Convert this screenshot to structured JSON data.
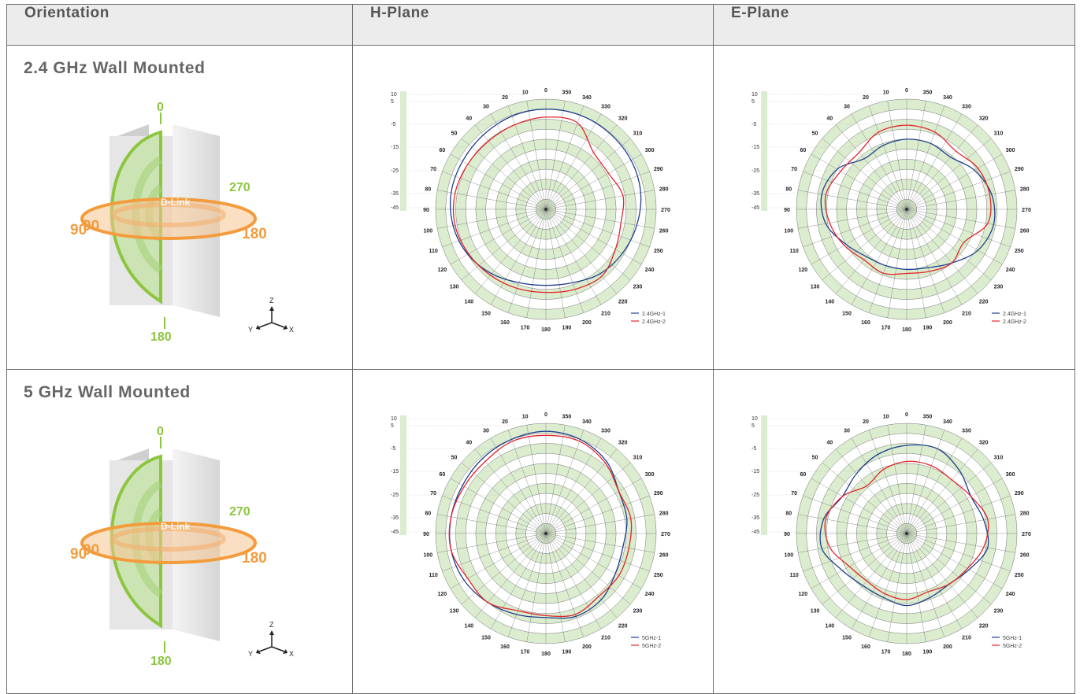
{
  "table": {
    "headers": [
      "Orientation",
      "H-Plane",
      "E-Plane"
    ],
    "rows": [
      {
        "orientation": "2.4 GHz Wall Mounted"
      },
      {
        "orientation": "5 GHz Wall Mounted"
      }
    ]
  },
  "illustration": {
    "brand": "D-Link",
    "label_top": "0",
    "label_bottom": "180",
    "label_right_upper": "270",
    "label_left_a": "90",
    "label_left_b": "90",
    "label_right": "180",
    "axis_z": "Z",
    "axis_y": "Y",
    "axis_x": "X",
    "green": "#8cc63f",
    "orange": "#f39c3d"
  },
  "chart_data": [
    {
      "type": "polar-line",
      "plane": "H-Plane",
      "band": "2.4 GHz",
      "rlim": [
        -45,
        10
      ],
      "rticks": [
        "10",
        "5",
        "-5",
        "-15",
        "-25",
        "-35",
        "-45"
      ],
      "angle_labels": [
        "0",
        "10",
        "20",
        "30",
        "40",
        "50",
        "60",
        "70",
        "80",
        "90",
        "100",
        "110",
        "120",
        "130",
        "140",
        "150",
        "160",
        "170",
        "180",
        "190",
        "200",
        "210",
        "220",
        "230",
        "240",
        "250",
        "260",
        "270",
        "280",
        "290",
        "300",
        "310",
        "320",
        "330",
        "340",
        "350"
      ],
      "series": [
        {
          "name": "2.4GHz-1",
          "color": "#1f3f8f",
          "angles": [
            0,
            20,
            40,
            60,
            80,
            100,
            120,
            140,
            160,
            180,
            200,
            220,
            240,
            260,
            280,
            300,
            320,
            340
          ],
          "values": [
            5,
            4.5,
            3.5,
            3,
            3,
            2,
            0,
            -3,
            -6,
            -7,
            -6,
            -3,
            -1,
            1,
            3,
            4,
            4.5,
            5
          ]
        },
        {
          "name": "2.4GHz-2",
          "color": "#e2262b",
          "angles": [
            0,
            20,
            40,
            60,
            80,
            100,
            120,
            140,
            160,
            180,
            200,
            220,
            240,
            260,
            280,
            300,
            320,
            340
          ],
          "values": [
            1,
            0,
            -0.5,
            0,
            1,
            1,
            -0.5,
            -2,
            -3,
            -3.5,
            -2.5,
            -1.5,
            -5,
            -7,
            -6,
            -9,
            -8,
            1
          ]
        }
      ]
    },
    {
      "type": "polar-line",
      "plane": "E-Plane",
      "band": "2.4 GHz",
      "rlim": [
        -45,
        10
      ],
      "rticks": [
        "10",
        "5",
        "-5",
        "-15",
        "-25",
        "-35",
        "-45"
      ],
      "angle_labels": [
        "0",
        "10",
        "20",
        "30",
        "40",
        "50",
        "60",
        "70",
        "80",
        "90",
        "100",
        "110",
        "120",
        "130",
        "140",
        "150",
        "160",
        "170",
        "180",
        "190",
        "200",
        "210",
        "220",
        "230",
        "240",
        "250",
        "260",
        "270",
        "280",
        "290",
        "300",
        "310",
        "320",
        "330",
        "340",
        "350"
      ],
      "series": [
        {
          "name": "2.4GHz-1",
          "color": "#1f3f8f",
          "angles": [
            0,
            20,
            40,
            60,
            80,
            100,
            120,
            140,
            160,
            180,
            200,
            220,
            240,
            260,
            280,
            300,
            320,
            340
          ],
          "values": [
            -10,
            -11,
            -12,
            -5,
            -2,
            -4,
            -10,
            -14,
            -15,
            -15,
            -14,
            -10,
            -4,
            -1,
            -2,
            -6,
            -11,
            -10
          ]
        },
        {
          "name": "2.4GHz-2",
          "color": "#e2262b",
          "angles": [
            0,
            20,
            40,
            60,
            80,
            100,
            120,
            140,
            160,
            180,
            200,
            220,
            240,
            260,
            280,
            300,
            320,
            340
          ],
          "values": [
            -3,
            -4,
            -8,
            -7,
            -4,
            -6,
            -9,
            -12,
            -11,
            -13,
            -12,
            -10,
            -12,
            -4,
            -3,
            -4,
            -7,
            -4
          ]
        }
      ]
    },
    {
      "type": "polar-line",
      "plane": "H-Plane",
      "band": "5 GHz",
      "rlim": [
        -45,
        10
      ],
      "rticks": [
        "10",
        "5",
        "-5",
        "-15",
        "-25",
        "-35",
        "-45"
      ],
      "angle_labels": [
        "0",
        "10",
        "20",
        "30",
        "40",
        "50",
        "60",
        "70",
        "80",
        "90",
        "100",
        "110",
        "120",
        "130",
        "140",
        "150",
        "160",
        "170",
        "180",
        "190",
        "200",
        "210",
        "220",
        "230",
        "240",
        "250",
        "260",
        "270",
        "280",
        "290",
        "300",
        "310",
        "320",
        "330",
        "340",
        "350"
      ],
      "series": [
        {
          "name": "5GHz-1",
          "color": "#1f3f8f",
          "angles": [
            0,
            20,
            40,
            60,
            80,
            100,
            120,
            140,
            160,
            180,
            200,
            220,
            240,
            260,
            280,
            300,
            320,
            340
          ],
          "values": [
            6,
            5,
            4,
            3,
            3,
            3,
            2,
            0,
            -2,
            -3,
            -1,
            -2,
            -5,
            -6,
            -4,
            -3,
            2,
            5
          ]
        },
        {
          "name": "5GHz-2",
          "color": "#e2262b",
          "angles": [
            0,
            20,
            40,
            60,
            80,
            100,
            120,
            140,
            160,
            180,
            200,
            220,
            240,
            260,
            280,
            300,
            320,
            340
          ],
          "values": [
            4,
            4,
            2,
            2,
            3,
            3,
            0,
            0,
            -4,
            -4,
            -2,
            -4,
            -3,
            -3,
            -2,
            -3,
            1,
            4
          ]
        }
      ]
    },
    {
      "type": "polar-line",
      "plane": "E-Plane",
      "band": "5 GHz",
      "rlim": [
        -45,
        10
      ],
      "rticks": [
        "10",
        "5",
        "-5",
        "-15",
        "-25",
        "-35",
        "-45"
      ],
      "angle_labels": [
        "0",
        "10",
        "20",
        "30",
        "40",
        "50",
        "60",
        "70",
        "80",
        "90",
        "100",
        "110",
        "120",
        "130",
        "140",
        "150",
        "160",
        "170",
        "180",
        "190",
        "200",
        "210",
        "220",
        "230",
        "240",
        "250",
        "260",
        "270",
        "280",
        "290",
        "300",
        "310",
        "320",
        "330",
        "340",
        "350"
      ],
      "series": [
        {
          "name": "5GHz-1",
          "color": "#1f3f8f",
          "angles": [
            0,
            20,
            40,
            60,
            80,
            100,
            120,
            140,
            160,
            180,
            200,
            220,
            240,
            260,
            280,
            300,
            320,
            340
          ],
          "values": [
            -1,
            -3,
            -6,
            -8,
            -3,
            -2,
            -8,
            -11,
            -11,
            -9,
            -11,
            -12,
            -9,
            -4,
            -6,
            -8,
            -4,
            0
          ]
        },
        {
          "name": "5GHz-2",
          "color": "#e2262b",
          "angles": [
            0,
            20,
            40,
            60,
            80,
            100,
            120,
            140,
            160,
            180,
            200,
            220,
            240,
            260,
            280,
            300,
            320,
            340
          ],
          "values": [
            -9,
            -11,
            -14,
            -8,
            -4,
            -6,
            -12,
            -14,
            -13,
            -12,
            -14,
            -12,
            -10,
            -6,
            -4,
            -8,
            -10,
            -9
          ]
        }
      ]
    }
  ]
}
